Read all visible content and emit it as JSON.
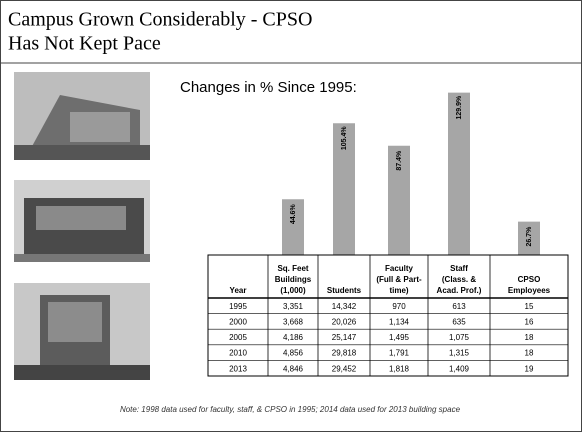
{
  "title": [
    "Campus Grown Considerably - CPSO",
    "Has Not Kept Pace"
  ],
  "chart_data": {
    "type": "bar",
    "title": "Changes in % Since 1995:",
    "categories": [
      null,
      null,
      null,
      null,
      null
    ],
    "values": [
      44.6,
      105.4,
      87.4,
      129.9,
      26.7
    ],
    "value_labels": [
      "44.6%",
      "105.4%",
      "87.4%",
      "129.9%",
      "26.7%"
    ],
    "color": "#a6a6a6"
  },
  "table": {
    "header": [
      [
        "Year"
      ],
      [
        "Sq. Feet",
        "Buildings",
        "(1,000)"
      ],
      [
        "Students"
      ],
      [
        "Faculty",
        "(Full & Part-",
        "time)"
      ],
      [
        "Staff",
        "(Class. &",
        "Acad. Prof.)"
      ],
      [
        "CPSO",
        "Employees"
      ]
    ],
    "rows": [
      [
        "1995",
        "3,351",
        "14,342",
        "970",
        "613",
        "15"
      ],
      [
        "2000",
        "3,668",
        "20,026",
        "1,134",
        "635",
        "16"
      ],
      [
        "2005",
        "4,186",
        "25,147",
        "1,495",
        "1,075",
        "18"
      ],
      [
        "2010",
        "4,856",
        "29,818",
        "1,791",
        "1,315",
        "18"
      ],
      [
        "2013",
        "4,846",
        "29,452",
        "1,818",
        "1,409",
        "19"
      ]
    ]
  },
  "note": "Note: 1998 data used for faculty, staff, & CPSO in 1995; 2014 data used for 2013 building space"
}
